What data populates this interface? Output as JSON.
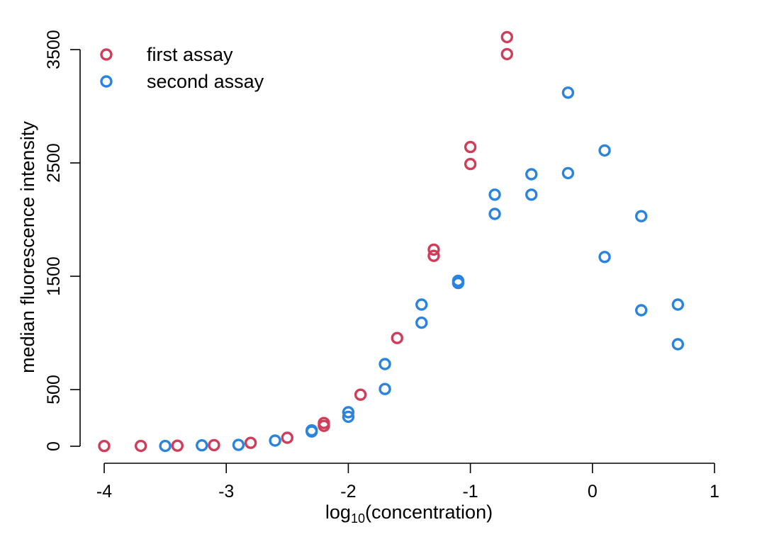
{
  "chart_data": {
    "type": "scatter",
    "title": "",
    "xlabel": {
      "base": "log",
      "subscript": "10",
      "rest": "(concentration)"
    },
    "ylabel": "median fluorescence intensity",
    "xlim": [
      -4,
      1
    ],
    "ylim": [
      0,
      3500
    ],
    "xticks": [
      -4,
      -3,
      -2,
      -1,
      0,
      1
    ],
    "xtick_labels": [
      "-4",
      "-3",
      "-2",
      "-1",
      "0",
      "1"
    ],
    "yticks": [
      0,
      500,
      1500,
      2500,
      3500
    ],
    "ytick_labels": [
      "0",
      "500",
      "1500",
      "2500",
      "3500"
    ],
    "grid": false,
    "legend": "top-left",
    "series": [
      {
        "name": "first assay",
        "color": "#d03d5a",
        "points": [
          [
            -4.0,
            2
          ],
          [
            -3.7,
            3
          ],
          [
            -3.4,
            5
          ],
          [
            -3.1,
            10
          ],
          [
            -2.8,
            30
          ],
          [
            -2.5,
            75
          ],
          [
            -2.2,
            180
          ],
          [
            -2.2,
            205
          ],
          [
            -1.9,
            455
          ],
          [
            -1.6,
            955
          ],
          [
            -1.3,
            1680
          ],
          [
            -1.3,
            1735
          ],
          [
            -1.0,
            2490
          ],
          [
            -1.0,
            2640
          ],
          [
            -0.7,
            3460
          ],
          [
            -0.7,
            3610
          ]
        ]
      },
      {
        "name": "second assay",
        "color": "#2a84dd",
        "points": [
          [
            -3.5,
            3
          ],
          [
            -3.2,
            8
          ],
          [
            -2.9,
            12
          ],
          [
            -2.6,
            50
          ],
          [
            -2.3,
            130
          ],
          [
            -2.3,
            140
          ],
          [
            -2.0,
            260
          ],
          [
            -2.0,
            300
          ],
          [
            -1.7,
            505
          ],
          [
            -1.7,
            725
          ],
          [
            -1.4,
            1090
          ],
          [
            -1.4,
            1250
          ],
          [
            -1.1,
            1440
          ],
          [
            -1.1,
            1460
          ],
          [
            -0.8,
            2050
          ],
          [
            -0.8,
            2220
          ],
          [
            -0.5,
            2220
          ],
          [
            -0.5,
            2400
          ],
          [
            -0.2,
            2410
          ],
          [
            -0.2,
            3120
          ],
          [
            0.1,
            2610
          ],
          [
            0.1,
            1670
          ],
          [
            0.4,
            2030
          ],
          [
            0.4,
            1200
          ],
          [
            0.7,
            1250
          ],
          [
            0.7,
            900
          ]
        ]
      }
    ]
  }
}
